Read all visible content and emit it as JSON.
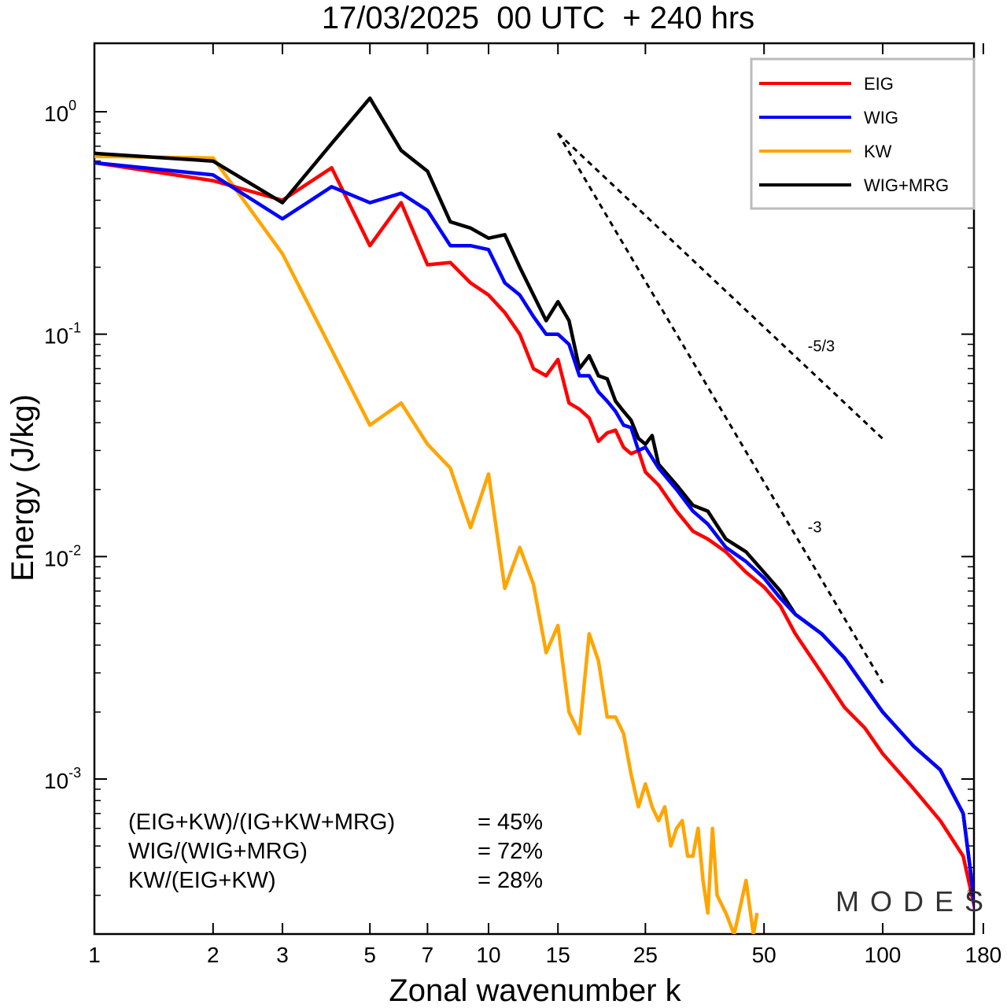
{
  "chart_data": {
    "type": "line",
    "title": "17/03/2025  00 UTC  + 240 hrs",
    "xlabel": "Zonal wavenumber k",
    "ylabel": "Energy (J/kg)",
    "xscale": "log",
    "yscale": "log",
    "xlim": [
      1,
      180
    ],
    "ylim": [
      0.0002,
      2
    ],
    "x_ticks": [
      1,
      2,
      3,
      5,
      7,
      10,
      15,
      25,
      50,
      100,
      180
    ],
    "y_ticks": [
      {
        "value": 1,
        "base": "10",
        "exp": "0"
      },
      {
        "value": 0.1,
        "base": "10",
        "exp": "-1"
      },
      {
        "value": 0.01,
        "base": "10",
        "exp": "-2"
      },
      {
        "value": 0.001,
        "base": "10",
        "exp": "-3"
      }
    ],
    "legend_position": "top-right",
    "series": [
      {
        "name": "EIG",
        "color": "#ff0000",
        "points": [
          [
            1,
            0.59
          ],
          [
            2,
            0.49
          ],
          [
            3,
            0.4
          ],
          [
            4,
            0.56
          ],
          [
            5,
            0.25
          ],
          [
            6,
            0.39
          ],
          [
            7,
            0.205
          ],
          [
            8,
            0.21
          ],
          [
            9,
            0.17
          ],
          [
            10,
            0.15
          ],
          [
            11,
            0.125
          ],
          [
            12,
            0.1
          ],
          [
            13,
            0.07
          ],
          [
            14,
            0.065
          ],
          [
            15,
            0.077
          ],
          [
            16,
            0.049
          ],
          [
            17,
            0.046
          ],
          [
            18,
            0.042
          ],
          [
            19,
            0.033
          ],
          [
            20,
            0.036
          ],
          [
            21,
            0.037
          ],
          [
            22,
            0.031
          ],
          [
            23,
            0.029
          ],
          [
            24,
            0.03
          ],
          [
            25,
            0.024
          ],
          [
            27,
            0.021
          ],
          [
            30,
            0.016
          ],
          [
            33,
            0.013
          ],
          [
            36,
            0.012
          ],
          [
            40,
            0.0105
          ],
          [
            45,
            0.0085
          ],
          [
            50,
            0.0073
          ],
          [
            55,
            0.006
          ],
          [
            60,
            0.0045
          ],
          [
            70,
            0.003
          ],
          [
            80,
            0.0021
          ],
          [
            90,
            0.0017
          ],
          [
            100,
            0.0013
          ],
          [
            120,
            0.0009
          ],
          [
            140,
            0.00065
          ],
          [
            160,
            0.00045
          ],
          [
            175,
            0.00022
          ]
        ]
      },
      {
        "name": "WIG",
        "color": "#0000ff",
        "points": [
          [
            1,
            0.59
          ],
          [
            2,
            0.52
          ],
          [
            3,
            0.33
          ],
          [
            4,
            0.46
          ],
          [
            5,
            0.39
          ],
          [
            6,
            0.43
          ],
          [
            7,
            0.36
          ],
          [
            8,
            0.25
          ],
          [
            9,
            0.25
          ],
          [
            10,
            0.24
          ],
          [
            11,
            0.17
          ],
          [
            12,
            0.15
          ],
          [
            13,
            0.12
          ],
          [
            14,
            0.1
          ],
          [
            15,
            0.1
          ],
          [
            16,
            0.09
          ],
          [
            17,
            0.065
          ],
          [
            18,
            0.065
          ],
          [
            19,
            0.055
          ],
          [
            20,
            0.05
          ],
          [
            21,
            0.045
          ],
          [
            22,
            0.039
          ],
          [
            23,
            0.038
          ],
          [
            24,
            0.03
          ],
          [
            25,
            0.031
          ],
          [
            27,
            0.025
          ],
          [
            30,
            0.02
          ],
          [
            33,
            0.016
          ],
          [
            36,
            0.014
          ],
          [
            40,
            0.011
          ],
          [
            45,
            0.0095
          ],
          [
            50,
            0.008
          ],
          [
            55,
            0.0065
          ],
          [
            60,
            0.0055
          ],
          [
            70,
            0.0045
          ],
          [
            80,
            0.0035
          ],
          [
            90,
            0.0026
          ],
          [
            100,
            0.002
          ],
          [
            120,
            0.0014
          ],
          [
            140,
            0.0011
          ],
          [
            160,
            0.0007
          ],
          [
            175,
            0.0002
          ]
        ]
      },
      {
        "name": "KW",
        "color": "#ffa500",
        "points": [
          [
            1,
            0.63
          ],
          [
            2,
            0.62
          ],
          [
            3,
            0.23
          ],
          [
            4,
            0.085
          ],
          [
            5,
            0.039
          ],
          [
            6,
            0.049
          ],
          [
            7,
            0.032
          ],
          [
            8,
            0.025
          ],
          [
            9,
            0.0135
          ],
          [
            10,
            0.0235
          ],
          [
            11,
            0.0072
          ],
          [
            12,
            0.011
          ],
          [
            13,
            0.0075
          ],
          [
            14,
            0.0037
          ],
          [
            15,
            0.0049
          ],
          [
            16,
            0.002
          ],
          [
            17,
            0.0016
          ],
          [
            18,
            0.0045
          ],
          [
            19,
            0.0034
          ],
          [
            20,
            0.0019
          ],
          [
            21,
            0.0019
          ],
          [
            22,
            0.0016
          ],
          [
            23,
            0.00105
          ],
          [
            24,
            0.00075
          ],
          [
            25,
            0.00095
          ],
          [
            26,
            0.00075
          ],
          [
            27,
            0.00065
          ],
          [
            28,
            0.00075
          ],
          [
            29,
            0.0005
          ],
          [
            30,
            0.0006
          ],
          [
            31,
            0.00065
          ],
          [
            32,
            0.00045
          ],
          [
            33,
            0.00045
          ],
          [
            34,
            0.0006
          ],
          [
            35,
            0.00035
          ],
          [
            36,
            0.00025
          ],
          [
            37,
            0.0006
          ],
          [
            38,
            0.0003
          ],
          [
            40,
            0.00025
          ],
          [
            42,
            0.0002
          ],
          [
            45,
            0.00035
          ],
          [
            47,
            0.0002
          ],
          [
            48,
            0.00025
          ]
        ]
      },
      {
        "name": "WIG+MRG",
        "color": "#000000",
        "points": [
          [
            1,
            0.65
          ],
          [
            2,
            0.6
          ],
          [
            3,
            0.39
          ],
          [
            4,
            0.72
          ],
          [
            5,
            1.15
          ],
          [
            6,
            0.67
          ],
          [
            7,
            0.54
          ],
          [
            8,
            0.32
          ],
          [
            9,
            0.3
          ],
          [
            10,
            0.27
          ],
          [
            11,
            0.28
          ],
          [
            12,
            0.2
          ],
          [
            13,
            0.15
          ],
          [
            14,
            0.115
          ],
          [
            15,
            0.14
          ],
          [
            16,
            0.115
          ],
          [
            17,
            0.07
          ],
          [
            18,
            0.08
          ],
          [
            19,
            0.065
          ],
          [
            20,
            0.063
          ],
          [
            21,
            0.05
          ],
          [
            22,
            0.045
          ],
          [
            23,
            0.041
          ],
          [
            24,
            0.034
          ],
          [
            25,
            0.032
          ],
          [
            26,
            0.035
          ],
          [
            27,
            0.026
          ],
          [
            30,
            0.021
          ],
          [
            33,
            0.017
          ],
          [
            36,
            0.016
          ],
          [
            40,
            0.012
          ],
          [
            45,
            0.0105
          ],
          [
            50,
            0.0085
          ],
          [
            55,
            0.007
          ],
          [
            60,
            0.0055
          ],
          [
            70,
            0.0045
          ],
          [
            80,
            0.0035
          ],
          [
            90,
            0.0026
          ],
          [
            100,
            0.002
          ],
          [
            120,
            0.0014
          ],
          [
            140,
            0.0011
          ],
          [
            160,
            0.0007
          ],
          [
            175,
            0.0002
          ]
        ]
      }
    ],
    "reference_lines": [
      {
        "label": "-5/3",
        "slope": -1.6667,
        "k_start": 15,
        "k_end": 100,
        "e_start": 0.8
      },
      {
        "label": "-3",
        "slope": -3,
        "k_start": 15,
        "k_end": 100,
        "e_start": 0.8
      }
    ],
    "stats": [
      {
        "label": "(EIG+KW)/(IG+KW+MRG)",
        "value": "= 45%"
      },
      {
        "label": "WIG/(WIG+MRG)",
        "value": "= 72%"
      },
      {
        "label": "KW/(EIG+KW)",
        "value": "= 28%"
      }
    ],
    "watermark": "MODES",
    "watermark_mark": "©"
  }
}
